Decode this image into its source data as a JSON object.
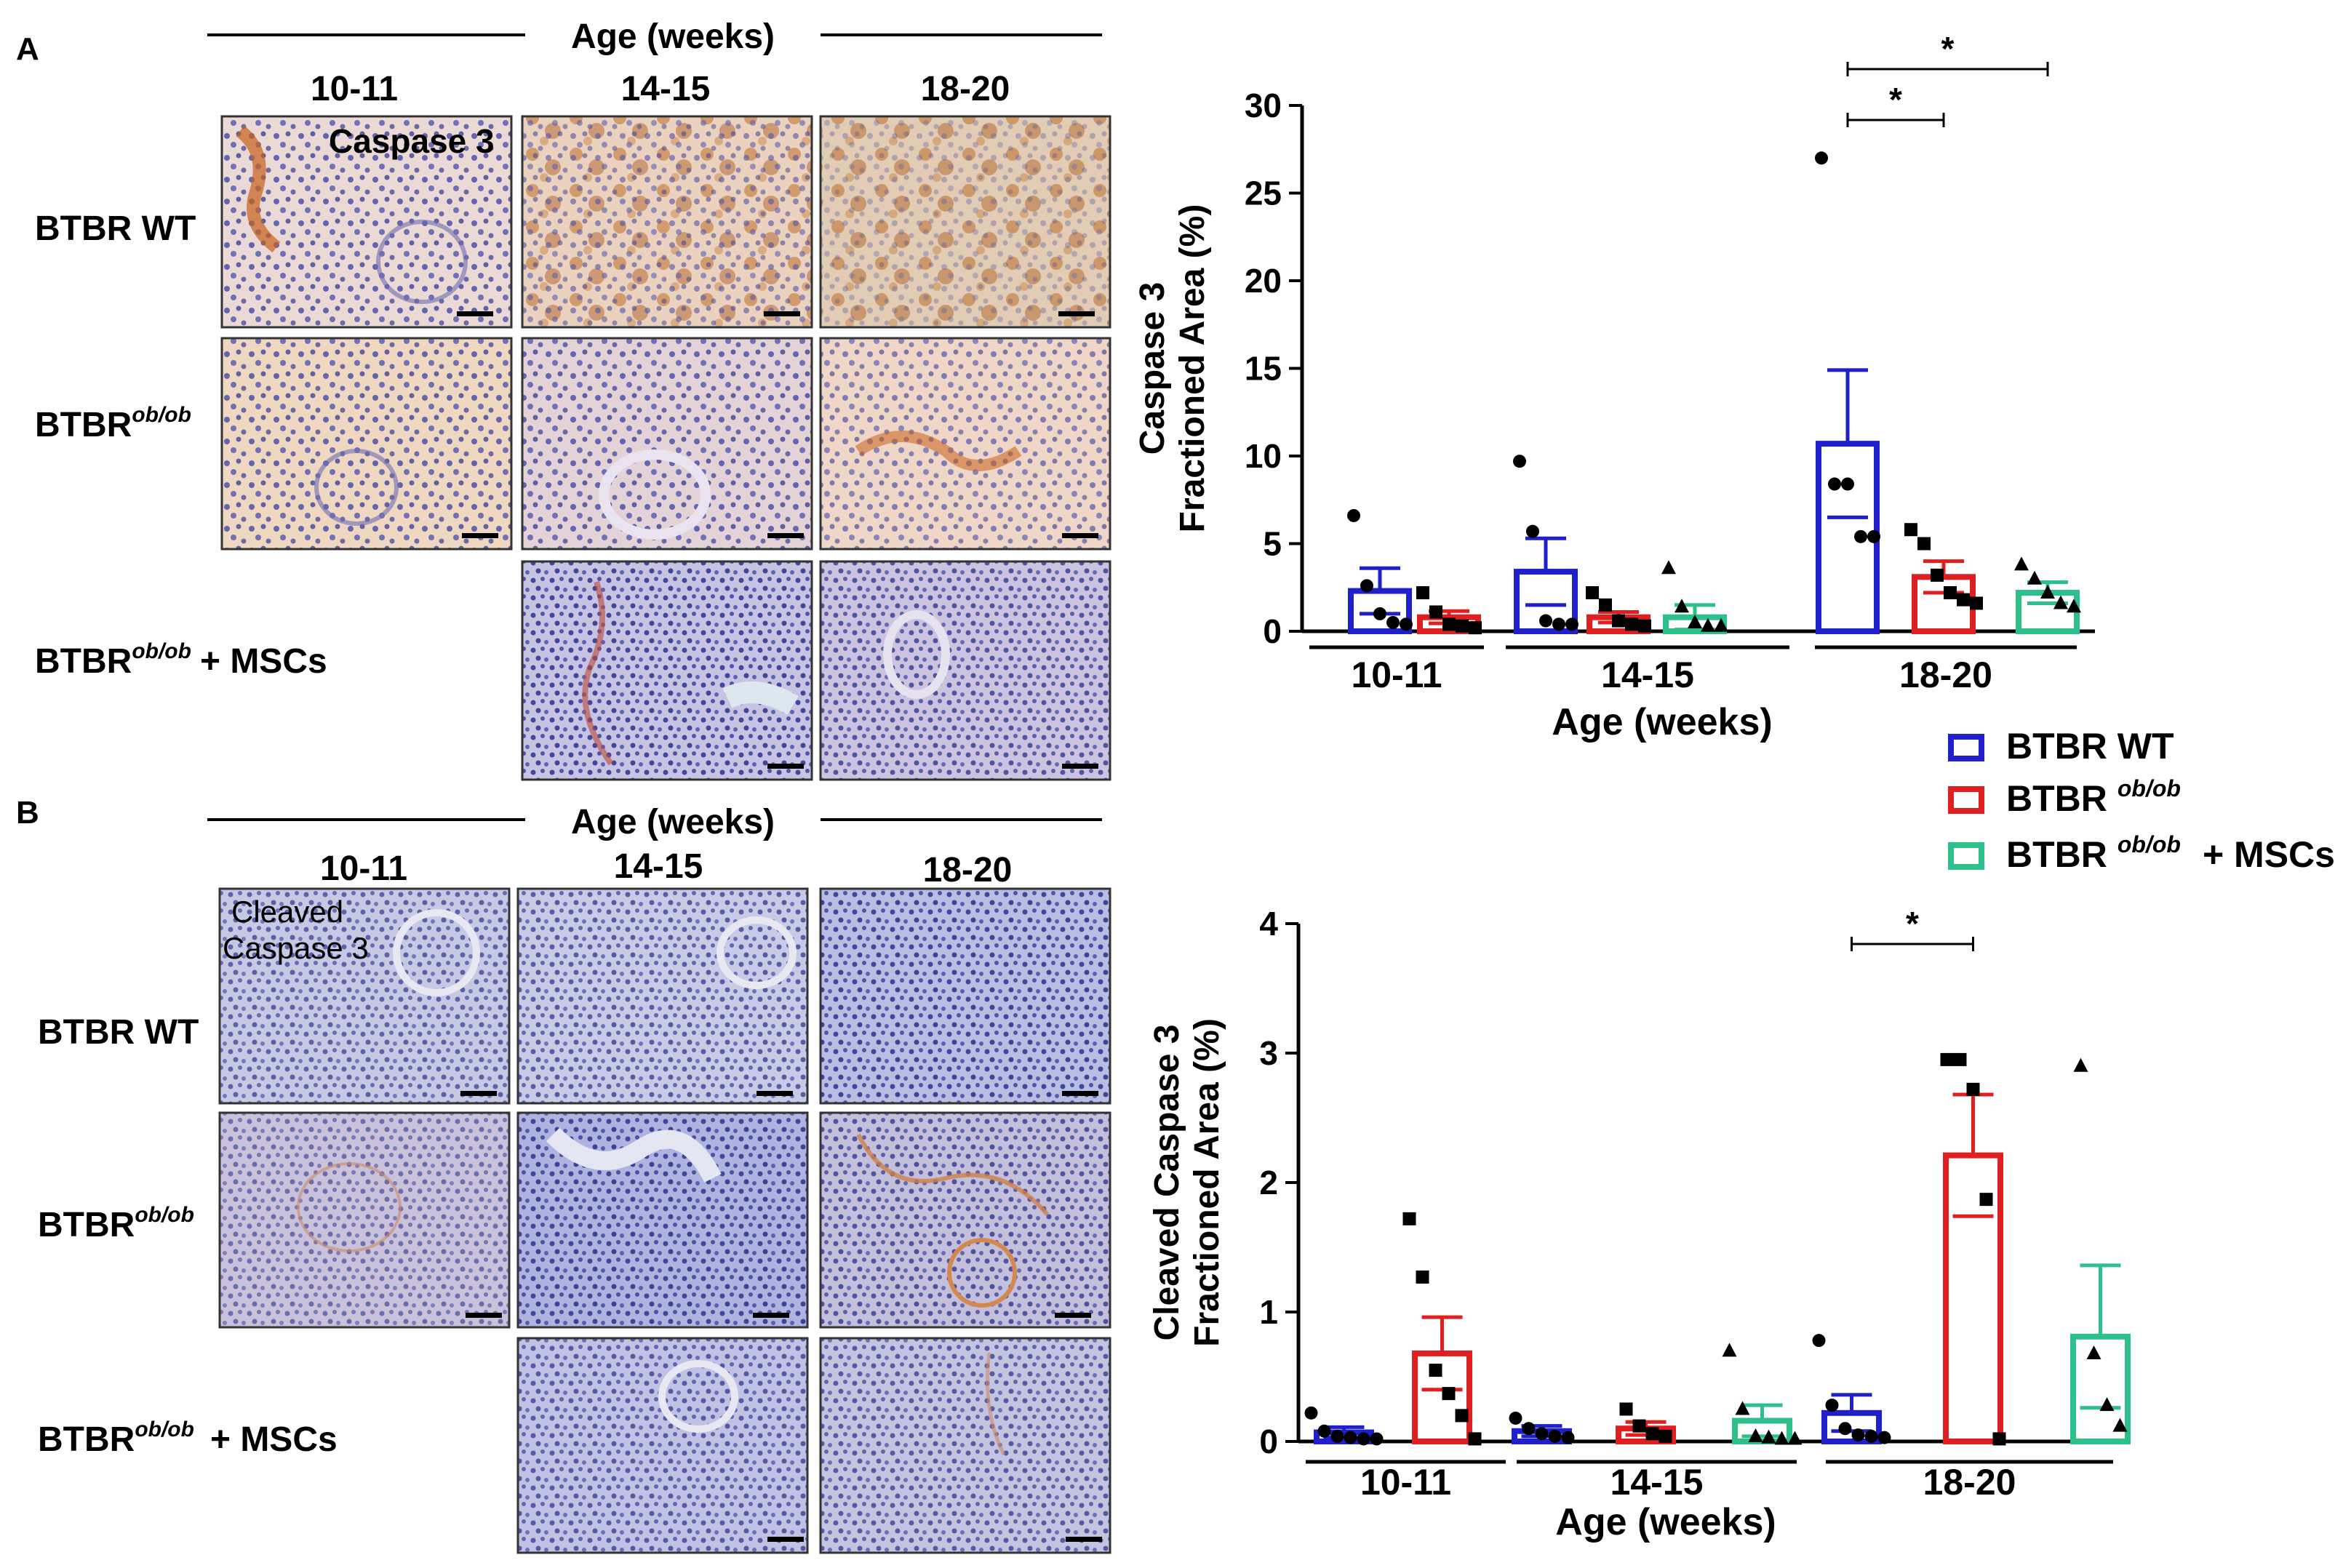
{
  "panels": {
    "A": {
      "letter": "A",
      "header": "Age (weeks)",
      "columns": [
        "10-11",
        "14-15",
        "18-20"
      ],
      "rows": [
        "BTBR WT",
        "BTBR",
        "BTBR"
      ],
      "row_superscripts": [
        "",
        "ob/ob",
        "ob/ob"
      ],
      "row_suffix_msc": "+ MSCs",
      "stain_label": "Caspase 3"
    },
    "B": {
      "letter": "B",
      "header": "Age (weeks)",
      "columns": [
        "10-11",
        "14-15",
        "18-20"
      ],
      "rows": [
        "BTBR WT",
        "BTBR",
        "BTBR"
      ],
      "row_superscripts": [
        "",
        "ob/ob",
        "ob/ob"
      ],
      "row_suffix_msc": "+ MSCs",
      "stain_label_line1": "Cleaved",
      "stain_label_line2": "Caspase 3"
    }
  },
  "legend": {
    "items": [
      {
        "label": "BTBR WT",
        "sup": "",
        "suffix": "",
        "color": "#1f1fcc"
      },
      {
        "label": "BTBR",
        "sup": "ob/ob",
        "suffix": "",
        "color": "#e02020"
      },
      {
        "label": "BTBR",
        "sup": "ob/ob",
        "suffix": "+ MSCs",
        "color": "#2ec08a"
      }
    ]
  },
  "chart_data": [
    {
      "type": "bar",
      "ylabel_line1": "Caspase 3",
      "ylabel_line2": "Fractioned Area  (%)",
      "xlabel": "Age (weeks)",
      "groups": [
        "10-11",
        "14-15",
        "18-20"
      ],
      "series_names": [
        "BTBR WT",
        "BTBR ob/ob",
        "BTBR ob/ob + MSCs"
      ],
      "ylim": [
        0,
        30
      ],
      "yticks": [
        "0",
        "5",
        "10",
        "15",
        "20",
        "25",
        "30"
      ],
      "ytick_values": [
        0,
        5,
        10,
        15,
        20,
        25,
        30
      ],
      "bars": [
        {
          "group": 0,
          "series": 0,
          "mean": 2.3,
          "sem": 1.3,
          "points": [
            6.6,
            2.6,
            1.0,
            0.5,
            0.4
          ]
        },
        {
          "group": 0,
          "series": 1,
          "mean": 0.8,
          "sem": 0.35,
          "points": [
            2.2,
            1.1,
            0.4,
            0.3,
            0.2
          ]
        },
        {
          "group": 1,
          "series": 0,
          "mean": 3.4,
          "sem": 1.9,
          "points": [
            9.7,
            5.7,
            0.6,
            0.4,
            0.4
          ]
        },
        {
          "group": 1,
          "series": 1,
          "mean": 0.8,
          "sem": 0.3,
          "points": [
            2.2,
            1.5,
            0.6,
            0.4,
            0.3
          ]
        },
        {
          "group": 1,
          "series": 2,
          "mean": 0.8,
          "sem": 0.7,
          "points": [
            3.6,
            1.4,
            0.5,
            0.3,
            0.3
          ]
        },
        {
          "group": 2,
          "series": 0,
          "mean": 10.7,
          "sem": 4.2,
          "points": [
            27.0,
            8.4,
            8.4,
            5.4,
            5.4
          ]
        },
        {
          "group": 2,
          "series": 1,
          "mean": 3.1,
          "sem": 0.9,
          "points": [
            5.8,
            5.0,
            3.2,
            2.2,
            1.8,
            1.6
          ]
        },
        {
          "group": 2,
          "series": 2,
          "mean": 2.2,
          "sem": 0.6,
          "points": [
            3.8,
            3.0,
            2.2,
            1.6,
            1.4
          ]
        }
      ],
      "significance": [
        {
          "group": 2,
          "from_series": 0,
          "to_series": 2,
          "label": "*"
        },
        {
          "group": 2,
          "from_series": 0,
          "to_series": 1,
          "label": "*"
        }
      ]
    },
    {
      "type": "bar",
      "ylabel_line1": "Cleaved Caspase 3",
      "ylabel_line2": "Fractioned Area  (%)",
      "xlabel": "Age (weeks)",
      "groups": [
        "10-11",
        "14-15",
        "18-20"
      ],
      "series_names": [
        "BTBR WT",
        "BTBR ob/ob",
        "BTBR ob/ob + MSCs"
      ],
      "ylim": [
        0,
        4
      ],
      "yticks": [
        "0",
        "1",
        "2",
        "3",
        "4"
      ],
      "ytick_values": [
        0,
        1,
        2,
        3,
        4
      ],
      "bars": [
        {
          "group": 0,
          "series": 0,
          "mean": 0.07,
          "sem": 0.04,
          "points": [
            0.22,
            0.08,
            0.04,
            0.03,
            0.02,
            0.02
          ]
        },
        {
          "group": 0,
          "series": 1,
          "mean": 0.68,
          "sem": 0.28,
          "points": [
            1.72,
            1.27,
            0.55,
            0.37,
            0.2,
            0.02
          ]
        },
        {
          "group": 1,
          "series": 0,
          "mean": 0.08,
          "sem": 0.04,
          "points": [
            0.18,
            0.1,
            0.06,
            0.04,
            0.03
          ]
        },
        {
          "group": 1,
          "series": 1,
          "mean": 0.1,
          "sem": 0.05,
          "points": [
            0.25,
            0.12,
            0.06,
            0.04
          ]
        },
        {
          "group": 1,
          "series": 2,
          "mean": 0.16,
          "sem": 0.12,
          "points": [
            0.7,
            0.25,
            0.04,
            0.03,
            0.02,
            0.02
          ]
        },
        {
          "group": 2,
          "series": 0,
          "mean": 0.22,
          "sem": 0.14,
          "points": [
            0.78,
            0.28,
            0.1,
            0.05,
            0.04,
            0.03
          ]
        },
        {
          "group": 2,
          "series": 1,
          "mean": 2.21,
          "sem": 0.47,
          "points": [
            2.95,
            2.95,
            2.72,
            1.87,
            0.02
          ]
        },
        {
          "group": 2,
          "series": 2,
          "mean": 0.81,
          "sem": 0.55,
          "points": [
            2.9,
            0.68,
            0.28,
            0.12
          ]
        }
      ],
      "significance": [
        {
          "group": 2,
          "from_series": 0,
          "to_series": 1,
          "label": "*"
        }
      ]
    }
  ]
}
